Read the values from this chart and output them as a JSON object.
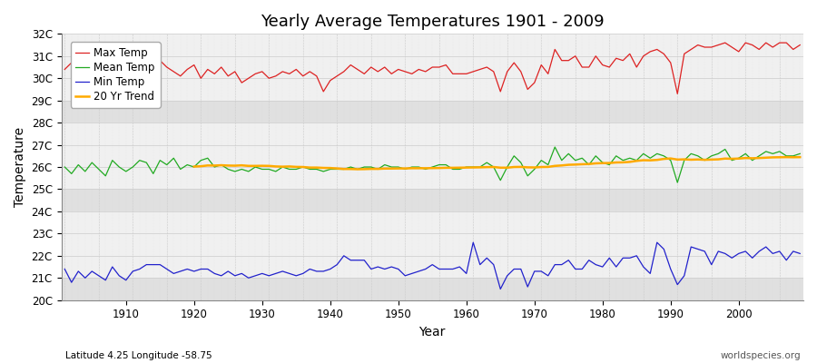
{
  "title": "Yearly Average Temperatures 1901 - 2009",
  "xlabel": "Year",
  "ylabel": "Temperature",
  "start_year": 1901,
  "end_year": 2009,
  "ylim": [
    20,
    32
  ],
  "yticks": [
    20,
    21,
    22,
    23,
    24,
    25,
    26,
    27,
    28,
    29,
    30,
    31,
    32
  ],
  "ytick_labels": [
    "20C",
    "21C",
    "22C",
    "23C",
    "24C",
    "25C",
    "26C",
    "27C",
    "28C",
    "29C",
    "30C",
    "31C",
    "32C"
  ],
  "bg_color": "#ffffff",
  "band_color_light": "#f0f0f0",
  "band_color_dark": "#e0e0e0",
  "max_temp_color": "#dd2222",
  "mean_temp_color": "#22aa22",
  "min_temp_color": "#2222cc",
  "trend_color": "#ffaa00",
  "legend_labels": [
    "Max Temp",
    "Mean Temp",
    "Min Temp",
    "20 Yr Trend"
  ],
  "subtitle": "Latitude 4.25 Longitude -58.75",
  "watermark": "worldspecies.org",
  "max_temps": [
    30.4,
    30.7,
    30.5,
    30.2,
    30.6,
    30.3,
    30.1,
    30.8,
    30.4,
    30.3,
    30.5,
    30.7,
    30.6,
    30.2,
    30.8,
    30.5,
    30.3,
    30.1,
    30.4,
    30.6,
    30.0,
    30.4,
    30.2,
    30.5,
    30.1,
    30.3,
    29.8,
    30.0,
    30.2,
    30.3,
    30.0,
    30.1,
    30.3,
    30.2,
    30.4,
    30.1,
    30.3,
    30.1,
    29.4,
    29.9,
    30.1,
    30.3,
    30.6,
    30.4,
    30.2,
    30.5,
    30.3,
    30.5,
    30.2,
    30.4,
    30.3,
    30.2,
    30.4,
    30.3,
    30.5,
    30.5,
    30.6,
    30.2,
    30.2,
    30.2,
    30.3,
    30.4,
    30.5,
    30.3,
    29.4,
    30.3,
    30.7,
    30.3,
    29.5,
    29.8,
    30.6,
    30.2,
    31.3,
    30.8,
    30.8,
    31.0,
    30.5,
    30.5,
    31.0,
    30.6,
    30.5,
    30.9,
    30.8,
    31.1,
    30.5,
    31.0,
    31.2,
    31.3,
    31.1,
    30.7,
    29.3,
    31.1,
    31.3,
    31.5,
    31.4,
    31.4,
    31.5,
    31.6,
    31.4,
    31.2,
    31.6,
    31.5,
    31.3,
    31.6,
    31.4,
    31.6,
    31.6,
    31.3,
    31.5
  ],
  "mean_temps": [
    26.0,
    25.7,
    26.1,
    25.8,
    26.2,
    25.9,
    25.6,
    26.3,
    26.0,
    25.8,
    26.0,
    26.3,
    26.2,
    25.7,
    26.3,
    26.1,
    26.4,
    25.9,
    26.1,
    26.0,
    26.3,
    26.4,
    26.0,
    26.1,
    25.9,
    25.8,
    25.9,
    25.8,
    26.0,
    25.9,
    25.9,
    25.8,
    26.0,
    25.9,
    25.9,
    26.0,
    25.9,
    25.9,
    25.8,
    25.9,
    25.9,
    25.9,
    26.0,
    25.9,
    26.0,
    26.0,
    25.9,
    26.1,
    26.0,
    26.0,
    25.9,
    26.0,
    26.0,
    25.9,
    26.0,
    26.1,
    26.1,
    25.9,
    25.9,
    26.0,
    26.0,
    26.0,
    26.2,
    26.0,
    25.4,
    26.0,
    26.5,
    26.2,
    25.6,
    25.9,
    26.3,
    26.1,
    26.9,
    26.3,
    26.6,
    26.3,
    26.4,
    26.1,
    26.5,
    26.2,
    26.1,
    26.5,
    26.3,
    26.4,
    26.3,
    26.6,
    26.4,
    26.6,
    26.5,
    26.3,
    25.3,
    26.3,
    26.6,
    26.5,
    26.3,
    26.5,
    26.6,
    26.8,
    26.3,
    26.4,
    26.6,
    26.3,
    26.5,
    26.7,
    26.6,
    26.7,
    26.5,
    26.5,
    26.6
  ],
  "min_temps": [
    21.4,
    20.8,
    21.3,
    21.0,
    21.3,
    21.1,
    20.9,
    21.5,
    21.1,
    20.9,
    21.3,
    21.4,
    21.6,
    21.6,
    21.6,
    21.4,
    21.2,
    21.3,
    21.4,
    21.3,
    21.4,
    21.4,
    21.2,
    21.1,
    21.3,
    21.1,
    21.2,
    21.0,
    21.1,
    21.2,
    21.1,
    21.2,
    21.3,
    21.2,
    21.1,
    21.2,
    21.4,
    21.3,
    21.3,
    21.4,
    21.6,
    22.0,
    21.8,
    21.8,
    21.8,
    21.4,
    21.5,
    21.4,
    21.5,
    21.4,
    21.1,
    21.2,
    21.3,
    21.4,
    21.6,
    21.4,
    21.4,
    21.4,
    21.5,
    21.2,
    22.6,
    21.6,
    21.9,
    21.6,
    20.5,
    21.1,
    21.4,
    21.4,
    20.6,
    21.3,
    21.3,
    21.1,
    21.6,
    21.6,
    21.8,
    21.4,
    21.4,
    21.8,
    21.6,
    21.5,
    21.9,
    21.5,
    21.9,
    21.9,
    22.0,
    21.5,
    21.2,
    22.6,
    22.3,
    21.4,
    20.7,
    21.1,
    22.4,
    22.3,
    22.2,
    21.6,
    22.2,
    22.1,
    21.9,
    22.1,
    22.2,
    21.9,
    22.2,
    22.4,
    22.1,
    22.2,
    21.8,
    22.2,
    22.1
  ]
}
